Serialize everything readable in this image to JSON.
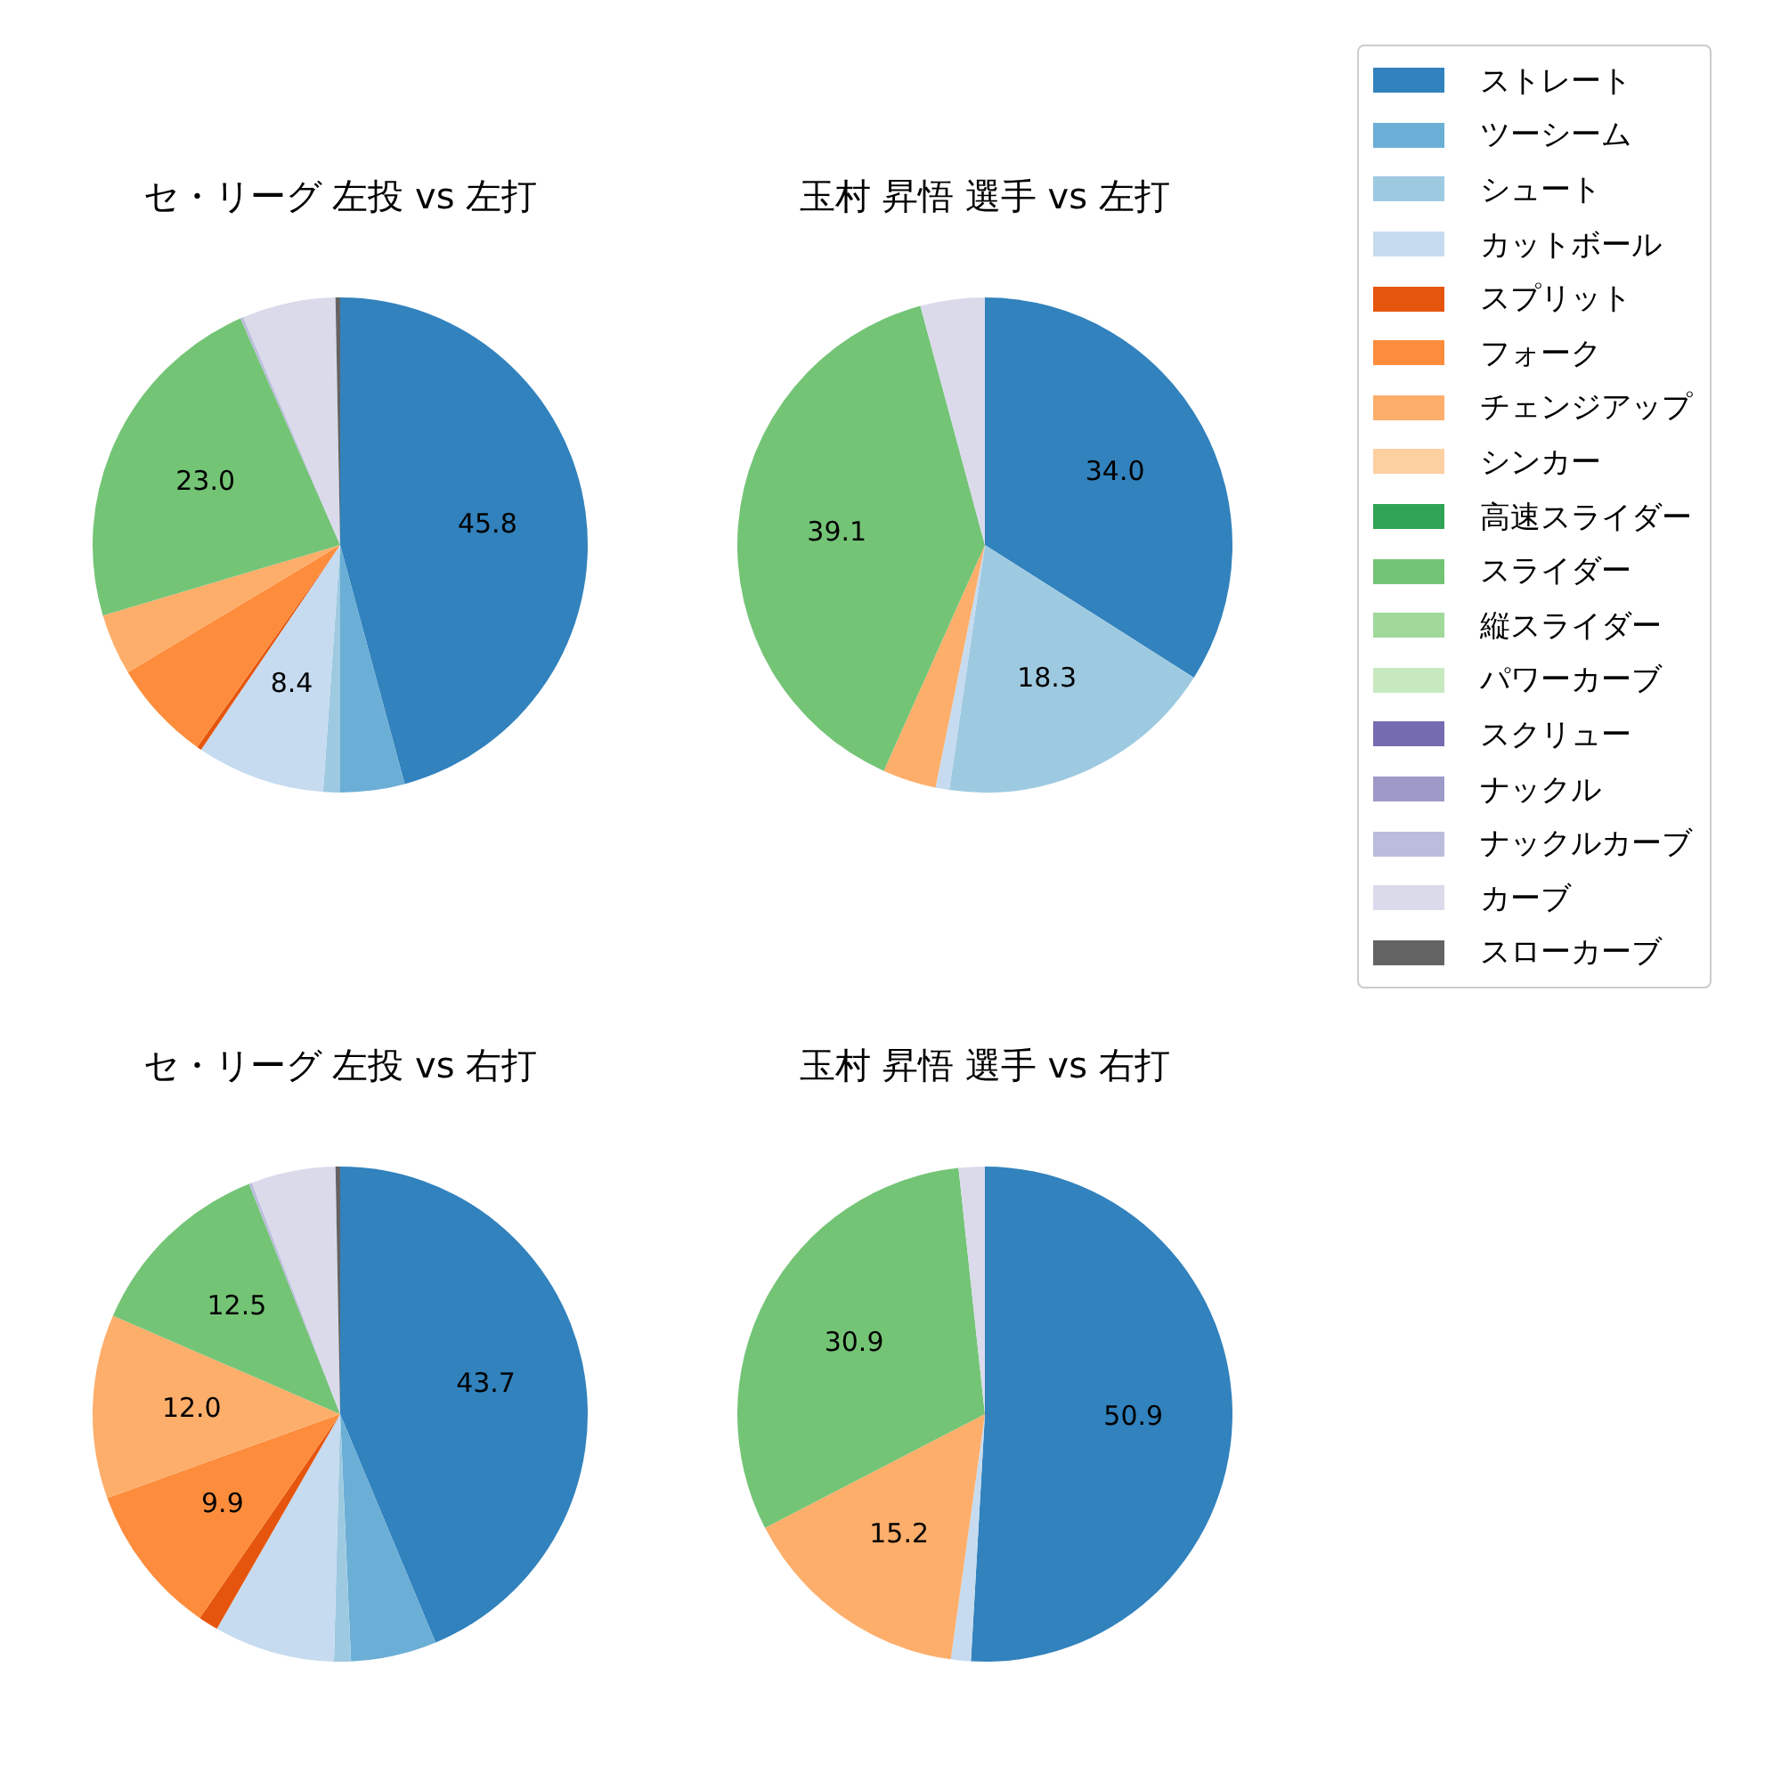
{
  "chart_data": [
    {
      "type": "pie",
      "title": "セ・リーグ 左投 vs 左打",
      "legend": "right",
      "categories": [
        "ストレート",
        "ツーシーム",
        "シュート",
        "カットボール",
        "スプリット",
        "フォーク",
        "チェンジアップ",
        "シンカー",
        "高速スライダー",
        "スライダー",
        "縦スライダー",
        "パワーカーブ",
        "スクリュー",
        "ナックル",
        "ナックルカーブ",
        "カーブ",
        "スローカーブ"
      ],
      "colors": [
        "#3182bd",
        "#6baed6",
        "#9ecae1",
        "#c6dbef",
        "#e6550d",
        "#fd8d3c",
        "#fdae6b",
        "#fdd0a2",
        "#31a354",
        "#74c476",
        "#a1d99b",
        "#c7e9c0",
        "#756bb1",
        "#9e9ac8",
        "#bcbddc",
        "#dadaeb",
        "#636363"
      ],
      "values": [
        45.8,
        4.2,
        1.1,
        8.4,
        0.3,
        6.6,
        4.0,
        0,
        0,
        23.0,
        0,
        0,
        0,
        0,
        0.2,
        6.1,
        0.3
      ],
      "value_labels": [
        "45.8",
        null,
        null,
        "8.4",
        null,
        null,
        null,
        null,
        null,
        "23.0",
        null,
        null,
        null,
        null,
        null,
        null,
        null
      ]
    },
    {
      "type": "pie",
      "title": "玉村 昇悟 選手 vs 左打",
      "colors": [
        "#3182bd",
        "#6baed6",
        "#9ecae1",
        "#c6dbef",
        "#e6550d",
        "#fd8d3c",
        "#fdae6b",
        "#fdd0a2",
        "#31a354",
        "#74c476",
        "#a1d99b",
        "#c7e9c0",
        "#756bb1",
        "#9e9ac8",
        "#bcbddc",
        "#dadaeb",
        "#636363"
      ],
      "values": [
        34.0,
        0,
        18.3,
        0.9,
        0,
        0,
        3.5,
        0,
        0,
        39.1,
        0,
        0,
        0,
        0,
        0,
        4.2,
        0
      ],
      "value_labels": [
        "34.0",
        null,
        "18.3",
        null,
        null,
        null,
        null,
        null,
        null,
        "39.1",
        null,
        null,
        null,
        null,
        null,
        null,
        null
      ]
    },
    {
      "type": "pie",
      "title": "セ・リーグ 左投 vs 右打",
      "colors": [
        "#3182bd",
        "#6baed6",
        "#9ecae1",
        "#c6dbef",
        "#e6550d",
        "#fd8d3c",
        "#fdae6b",
        "#fdd0a2",
        "#31a354",
        "#74c476",
        "#a1d99b",
        "#c7e9c0",
        "#756bb1",
        "#9e9ac8",
        "#bcbddc",
        "#dadaeb",
        "#636363"
      ],
      "values": [
        43.7,
        5.6,
        1.1,
        7.9,
        1.3,
        9.9,
        12.0,
        0,
        0,
        12.5,
        0,
        0,
        0,
        0,
        0.2,
        5.5,
        0.3
      ],
      "value_labels": [
        "43.7",
        null,
        null,
        null,
        null,
        "9.9",
        "12.0",
        null,
        null,
        "12.5",
        null,
        null,
        null,
        null,
        null,
        null,
        null
      ]
    },
    {
      "type": "pie",
      "title": "玉村 昇悟 選手 vs 右打",
      "colors": [
        "#3182bd",
        "#6baed6",
        "#9ecae1",
        "#c6dbef",
        "#e6550d",
        "#fd8d3c",
        "#fdae6b",
        "#fdd0a2",
        "#31a354",
        "#74c476",
        "#a1d99b",
        "#c7e9c0",
        "#756bb1",
        "#9e9ac8",
        "#bcbddc",
        "#dadaeb",
        "#636363"
      ],
      "values": [
        50.9,
        0,
        0,
        1.3,
        0,
        0,
        15.2,
        0,
        0,
        30.9,
        0,
        0,
        0,
        0,
        0,
        1.7,
        0
      ],
      "value_labels": [
        "50.9",
        null,
        null,
        null,
        null,
        null,
        "15.2",
        null,
        null,
        "30.9",
        null,
        null,
        null,
        null,
        null,
        null,
        null
      ]
    }
  ]
}
